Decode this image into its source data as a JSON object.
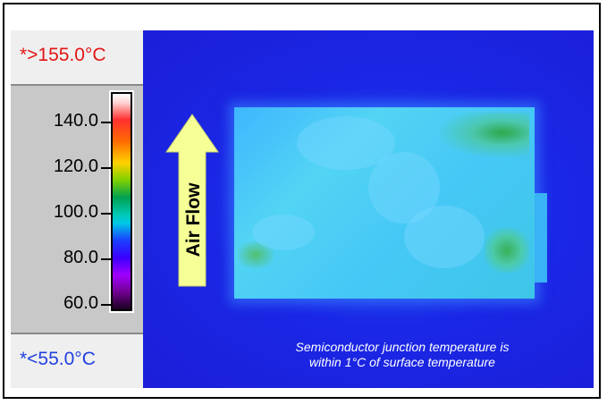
{
  "scale": {
    "max_label": "*>155.0°C",
    "min_label": "*<55.0°C",
    "ticks": [
      {
        "label": "140.0",
        "value": 140
      },
      {
        "label": "120.0",
        "value": 120
      },
      {
        "label": "100.0",
        "value": 100
      },
      {
        "label": "80.0",
        "value": 80
      },
      {
        "label": "60.0",
        "value": 60
      }
    ],
    "max_color": "#e41414",
    "min_color": "#2040e0"
  },
  "image": {
    "airflow_label": "Air Flow",
    "caption_line1": "Semiconductor junction temperature is",
    "caption_line2": "within 1°C of surface temperature",
    "background_color": "#1e24e0",
    "arrow_color": "#f5ff96"
  }
}
